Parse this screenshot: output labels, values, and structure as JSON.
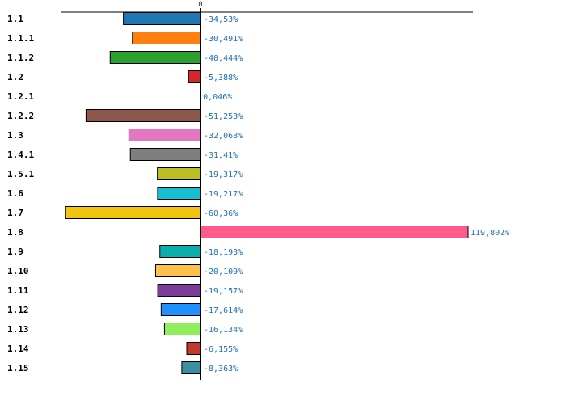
{
  "chart_data": {
    "type": "bar",
    "orientation": "horizontal",
    "zero_tick_label": "0",
    "xlim": [
      -70,
      124
    ],
    "grid": false,
    "categories": [
      "1.1",
      "1.1.1",
      "1.1.2",
      "1.2",
      "1.2.1",
      "1.2.2",
      "1.3",
      "1.4.1",
      "1.5.1",
      "1.6",
      "1.7",
      "1.8",
      "1.9",
      "1.10",
      "1.11",
      "1.12",
      "1.13",
      "1.14",
      "1.15"
    ],
    "values": [
      -34.53,
      -30.491,
      -40.444,
      -5.388,
      0.046,
      -51.253,
      -32.068,
      -31.41,
      -19.317,
      -19.217,
      -60.36,
      119.802,
      -18.193,
      -20.109,
      -19.157,
      -17.614,
      -16.134,
      -6.155,
      -8.363
    ],
    "value_labels": [
      "-34,53%",
      "-30,491%",
      "-40,444%",
      "-5,388%",
      "0,046%",
      "-51,253%",
      "-32,068%",
      "-31,41%",
      "-19,317%",
      "-19,217%",
      "-60,36%",
      "119,802%",
      "-18,193%",
      "-20,109%",
      "-19,157%",
      "-17,614%",
      "-16,134%",
      "-6,155%",
      "-8,363%"
    ],
    "colors": [
      "#1f77b4",
      "#ff7f0e",
      "#2ca02c",
      "#d62728",
      "#9467bd",
      "#8c564b",
      "#e377c2",
      "#7f7f7f",
      "#bcbd22",
      "#17becf",
      "#f1c40f",
      "#ff5a8c",
      "#0aaeaa",
      "#ffc04c",
      "#7d3c98",
      "#1e90ff",
      "#90ee5a",
      "#c0392b",
      "#3a8fa0"
    ]
  }
}
